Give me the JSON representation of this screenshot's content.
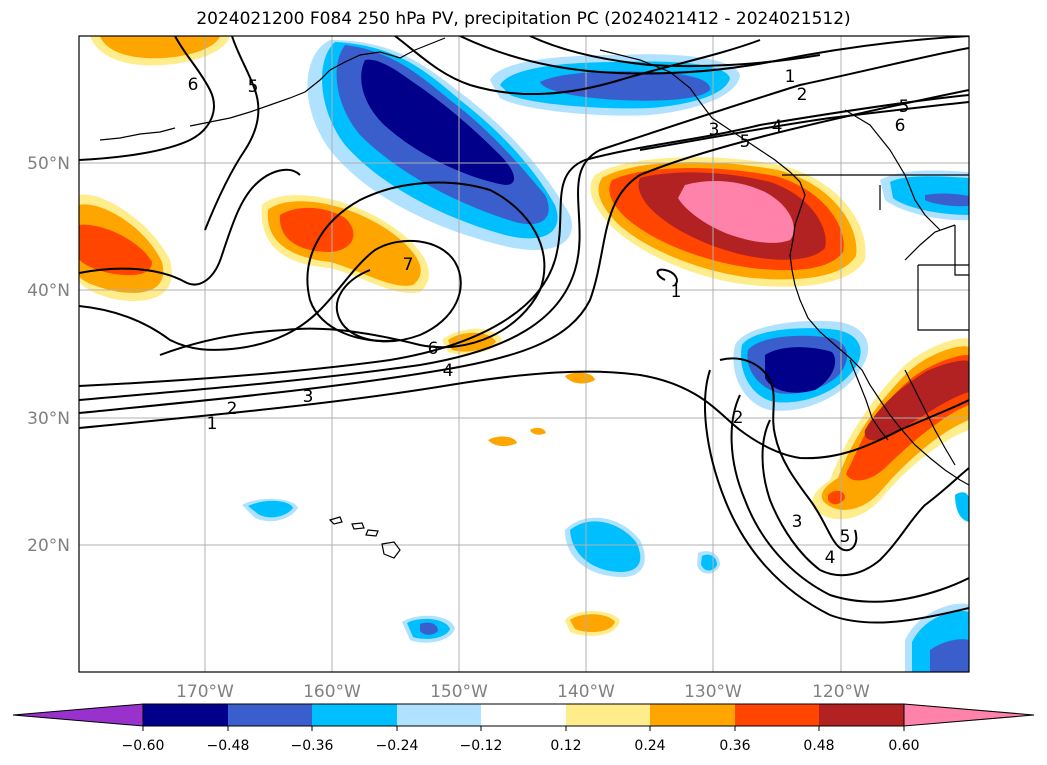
{
  "title": "2024021200 F084 250 hPa PV, precipitation PC (2024021412 - 2024021512)",
  "latitude_labels": [
    "50°N",
    "40°N",
    "30°N",
    "20°N"
  ],
  "longitude_labels": [
    "170°W",
    "160°W",
    "150°W",
    "140°W",
    "130°W",
    "120°W"
  ],
  "colorbar": {
    "ticks": [
      "−0.60",
      "−0.48",
      "−0.36",
      "−0.24",
      "−0.12",
      "0.12",
      "0.24",
      "0.36",
      "0.48",
      "0.60"
    ],
    "colors": [
      "#9932cc",
      "#00008b",
      "#3a5fcd",
      "#00bfff",
      "#b0e2ff",
      "#ffffff",
      "#ffec8b",
      "#ffa500",
      "#ff4500",
      "#b22222",
      "#ff82ab"
    ]
  },
  "contour_labels": [
    "1",
    "2",
    "3",
    "4",
    "5",
    "6",
    "7",
    "1",
    "2",
    "3",
    "4",
    "5",
    "6",
    "1",
    "2",
    "3",
    "4",
    "5",
    "6",
    "5"
  ],
  "colors": {
    "grid": "#b0b0b0",
    "contour": "#000000",
    "coast": "#000000"
  }
}
